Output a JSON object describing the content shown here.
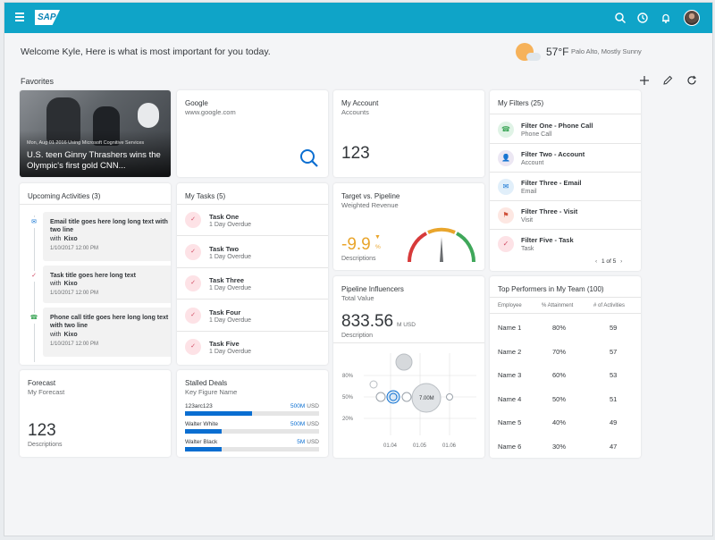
{
  "shell": {
    "logo": "SAP",
    "icons": [
      "menu-icon",
      "search-icon",
      "history-icon",
      "notification-icon",
      "avatar"
    ]
  },
  "welcome": "Welcome Kyle, Here is what is most important for you today.",
  "weather": {
    "temp": "57°F",
    "desc": "Palo Alto, Mostly Sunny"
  },
  "favorites_title": "Favorites",
  "news": {
    "meta": "Mon, Aug 01 2016     Using Microsoft Cognitive Services",
    "title": "U.S. teen Ginny Thrashers wins the Olympic's first gold CNN..."
  },
  "google": {
    "title": "Google",
    "url": "www.google.com"
  },
  "account": {
    "title": "My Account",
    "sub": "Accounts",
    "value": "123"
  },
  "filters": {
    "title": "My Filters (25)",
    "items": [
      {
        "name": "Filter One - Phone Call",
        "type": "Phone Call",
        "icon": "phone-icon"
      },
      {
        "name": "Filter Two - Account",
        "type": "Account",
        "icon": "account-icon"
      },
      {
        "name": "Filter Three - Email",
        "type": "Email",
        "icon": "email-icon"
      },
      {
        "name": "Filter Three - Visit",
        "type": "Visit",
        "icon": "visit-icon"
      },
      {
        "name": "Filter Five - Task",
        "type": "Task",
        "icon": "task-icon"
      }
    ],
    "pager": "1 of 5"
  },
  "activities": {
    "title": "Upcoming Activities (3)",
    "items": [
      {
        "title": "Email title goes here long long text with two line",
        "who_prefix": "with",
        "who": "Kixo",
        "time": "1/10/2017 12:00 PM"
      },
      {
        "title": "Task title goes here long text",
        "who_prefix": "with",
        "who": "Kixo",
        "time": "1/10/2017 12:00 PM"
      },
      {
        "title": "Phone call title goes here long long text with two line",
        "who_prefix": "with",
        "who": "Kixo",
        "time": "1/10/2017 12:00 PM"
      }
    ]
  },
  "tasks": {
    "title": "My Tasks (5)",
    "items": [
      {
        "name": "Task One",
        "due": "1 Day Overdue"
      },
      {
        "name": "Task Two",
        "due": "1 Day Overdue"
      },
      {
        "name": "Task Three",
        "due": "1 Day Overdue"
      },
      {
        "name": "Task Four",
        "due": "1 Day Overdue"
      },
      {
        "name": "Task Five",
        "due": "1 Day Overdue"
      }
    ]
  },
  "target": {
    "title": "Target vs. Pipeline",
    "sub": "Weighted Revenue",
    "value": "-9.9",
    "unit": "%",
    "desc": "Descriptions",
    "gauge_value": 0.5
  },
  "influencers": {
    "title": "Pipeline Influencers",
    "sub": "Total Value",
    "value": "833.56",
    "unit": "M USD",
    "desc": "Description",
    "bubble_label": "7.00M"
  },
  "chart_data": {
    "type": "scatter",
    "x_ticks": [
      "01.04",
      "01.05",
      "01.06"
    ],
    "y_ticks": [
      "80%",
      "50%",
      "20%"
    ],
    "points": [
      {
        "x": "01.04",
        "y": "80%"
      },
      {
        "x": "01.04",
        "y": "50%"
      },
      {
        "x": "01.05",
        "y": "50%",
        "label": "7.00M"
      },
      {
        "x": "01.06",
        "y": "50%"
      }
    ]
  },
  "performers": {
    "title": "Top Performers in My Team (100)",
    "headers": [
      "Employee",
      "% Attainment",
      "# of Activities"
    ],
    "rows": [
      [
        "Name 1",
        "80%",
        "59"
      ],
      [
        "Name 2",
        "70%",
        "57"
      ],
      [
        "Name 3",
        "60%",
        "53"
      ],
      [
        "Name 4",
        "50%",
        "51"
      ],
      [
        "Name 5",
        "40%",
        "49"
      ],
      [
        "Name 6",
        "30%",
        "47"
      ]
    ]
  },
  "forecast": {
    "title": "Forecast",
    "sub": "My Forecast",
    "value": "123",
    "desc": "Descriptions"
  },
  "stalled": {
    "title": "Stalled Deals",
    "sub": "Key Figure Name",
    "deals": [
      {
        "name": "123arc123",
        "value": "500M",
        "unit": "USD",
        "fill": 0.5
      },
      {
        "name": "Walter White",
        "value": "500M",
        "unit": "USD",
        "fill": 0.27
      },
      {
        "name": "Walter Black",
        "value": "5M",
        "unit": "USD",
        "fill": 0.27
      }
    ]
  },
  "colors": {
    "shell": "#0fa4c8",
    "accent": "#0a6ed1",
    "text": "#32363a",
    "warning": "#e9a52c"
  }
}
